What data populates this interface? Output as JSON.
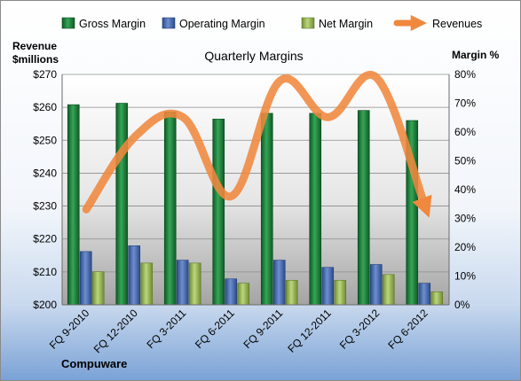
{
  "chart_data": {
    "type": "bar",
    "title": "Quarterly Margins",
    "company": "Compuware",
    "categories": [
      "FQ 9-2010",
      "FQ 12-2010",
      "FQ 3-2011",
      "FQ 6-2011",
      "FQ 9-2011",
      "FQ 12-2011",
      "FQ 3-2012",
      "FQ 6-2012"
    ],
    "series": [
      {
        "name": "Gross Margin",
        "axis": "right",
        "values": [
          69.5,
          70.0,
          67.0,
          64.5,
          66.5,
          66.5,
          67.5,
          64.0
        ]
      },
      {
        "name": "Operating Margin",
        "axis": "right",
        "values": [
          18.5,
          20.5,
          15.5,
          9.0,
          15.5,
          13.0,
          14.0,
          7.5
        ]
      },
      {
        "name": "Net Margin",
        "axis": "right",
        "values": [
          11.5,
          14.5,
          14.5,
          7.5,
          8.5,
          8.5,
          10.5,
          4.5
        ]
      },
      {
        "name": "Revenues",
        "type": "line",
        "axis": "left",
        "values": [
          229,
          251,
          257,
          233,
          268,
          257,
          269,
          230
        ]
      }
    ],
    "ylabel_left_line1": "Revenue",
    "ylabel_left_line2": "$millions",
    "ylabel_right": "Margin %",
    "ylim_left": [
      200,
      270
    ],
    "yticks_left": [
      "$200",
      "$210",
      "$220",
      "$230",
      "$240",
      "$250",
      "$260",
      "$270"
    ],
    "ylim_right": [
      0,
      80
    ],
    "yticks_right": [
      "0%",
      "10%",
      "20%",
      "30%",
      "40%",
      "50%",
      "60%",
      "70%",
      "80%"
    ],
    "grid": true,
    "legend_position": "top",
    "colors": {
      "gross_margin": "#1e8a3e",
      "operating_margin": "#4a6fb5",
      "net_margin": "#9cbc59",
      "revenues": "#f0883e"
    }
  }
}
